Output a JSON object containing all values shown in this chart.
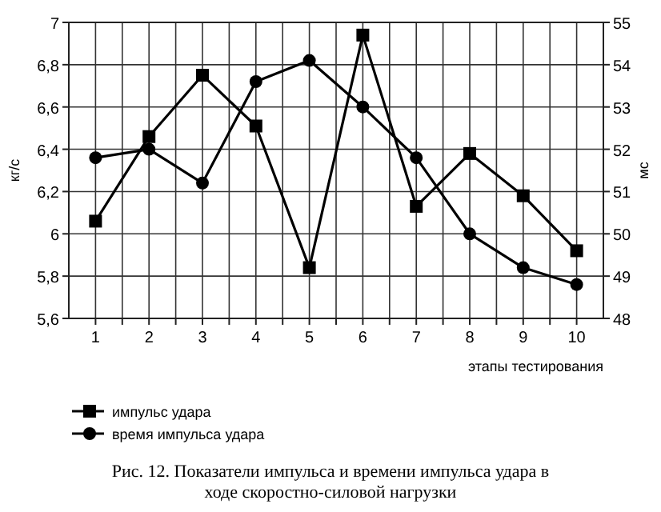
{
  "chart_data": {
    "type": "line",
    "title": "Рис. 12. Показатели импульса и времени импульса удара в ходе скоростно-силовой нагрузки",
    "xlabel": "этапы тестирования",
    "ylabel": "кг/с",
    "y2label": "мс",
    "x": [
      1,
      2,
      3,
      4,
      5,
      6,
      7,
      8,
      9,
      10
    ],
    "xlim": [
      0.5,
      10.5
    ],
    "xticks": [
      1,
      {
        "value": 1.5,
        "label": null
      },
      2,
      {
        "value": 2.5,
        "label": null
      },
      3,
      {
        "value": 3.5,
        "label": null
      },
      4,
      {
        "value": 4.5,
        "label": null
      },
      5,
      {
        "value": 5.5,
        "label": null
      },
      6,
      {
        "value": 6.5,
        "label": null
      },
      7,
      {
        "value": 7.5,
        "label": null
      },
      8,
      {
        "value": 8.5,
        "label": null
      },
      9,
      {
        "value": 9.5,
        "label": null
      },
      10
    ],
    "ylim": [
      5.6,
      7
    ],
    "yticks": [
      {
        "value": 5.6,
        "label": "5,6"
      },
      {
        "value": 5.8,
        "label": "5,8"
      },
      6,
      {
        "value": 6.2,
        "label": "6,2"
      },
      {
        "value": 6.4,
        "label": "6,4"
      },
      {
        "value": 6.6,
        "label": "6,6"
      },
      {
        "value": 6.8,
        "label": "6,8"
      },
      7
    ],
    "y2lim": [
      48,
      55
    ],
    "y2ticks": [
      48,
      49,
      50,
      51,
      52,
      53,
      54,
      55
    ],
    "grid": true,
    "legend": "bottom left",
    "series": [
      {
        "name": "импульс удара",
        "color": "#000000",
        "marker": "square",
        "values": [
          6.06,
          6.46,
          6.75,
          6.51,
          5.84,
          6.94,
          6.13,
          6.38,
          6.18,
          5.92
        ]
      },
      {
        "name": "время импульса удара",
        "color": "#000000",
        "marker": "circle",
        "axis": "y2",
        "values": [
          51.8,
          52.0,
          51.2,
          53.6,
          54.1,
          53.0,
          51.8,
          50.0,
          49.2,
          48.8
        ]
      }
    ]
  }
}
